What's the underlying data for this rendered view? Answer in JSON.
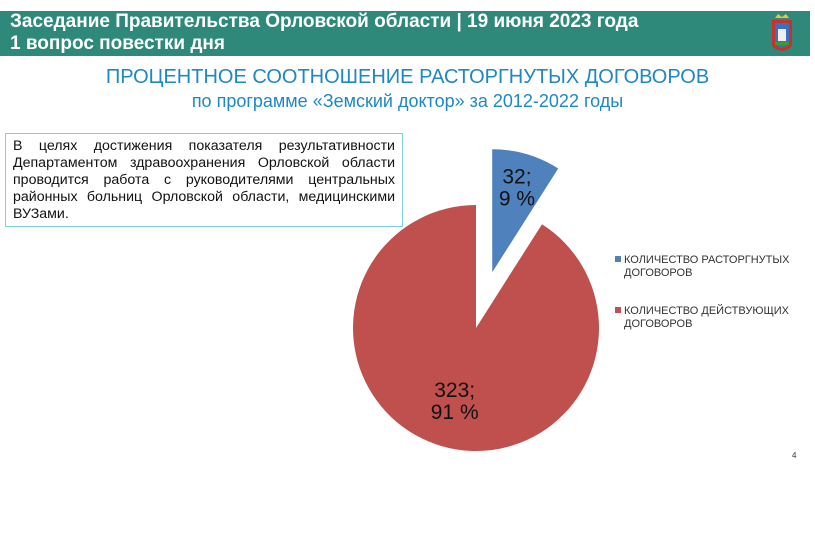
{
  "header": {
    "line1": "Заседание Правительства Орловской области | 19 июня 2023 года",
    "line2": "1 вопрос повестки дня",
    "background": "#2e897b",
    "emblem_icon": "orel-oblast-coat-of-arms"
  },
  "note": "В целях достижения показателя результативности Департаментом здравоохранения Орловской области проводится работа с руководителями центральных районных больниц Орловской области, медицинскими ВУЗами.",
  "page_number": "4",
  "chart_data": {
    "type": "pie",
    "title": "ПРОЦЕНТНОЕ СООТНОШЕНИЕ РАСТОРГНУТЫХ ДОГОВОРОВ",
    "subtitle": "по программе «Земский доктор» за 2012-2022 годы",
    "legend_position": "right",
    "exploded": "КОЛИЧЕСТВО РАСТОРГНУТЫХ ДОГОВОРОВ",
    "series": [
      {
        "name": "КОЛИЧЕСТВО РАСТОРГНУТЫХ ДОГОВОРОВ",
        "value": 32,
        "percent": 9,
        "label_value": "32;",
        "label_percent": "9 %",
        "color": "#4f81bd"
      },
      {
        "name": "КОЛИЧЕСТВО ДЕЙСТВУЮЩИХ ДОГОВОРОВ",
        "value": 323,
        "percent": 91,
        "label_value": "323;",
        "label_percent": "91 %",
        "color": "#c0504d"
      }
    ]
  }
}
